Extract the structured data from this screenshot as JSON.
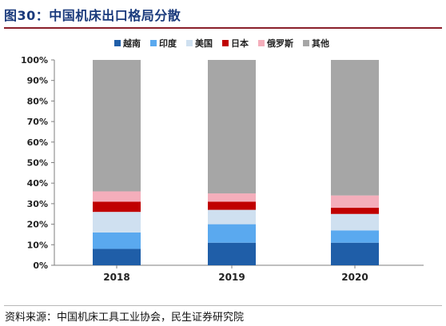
{
  "header": {
    "title": "图30：中国机床出口格局分散"
  },
  "footer": {
    "source": "资料来源：中国机床工具工业协会，民生证券研究院"
  },
  "chart_data": {
    "type": "bar",
    "stacked": true,
    "categories": [
      "2018",
      "2019",
      "2020"
    ],
    "yticks": [
      "0%",
      "10%",
      "20%",
      "30%",
      "40%",
      "50%",
      "60%",
      "70%",
      "80%",
      "90%",
      "100%"
    ],
    "ylim": [
      0,
      100
    ],
    "unit": "%",
    "grid": false,
    "legend_position": "top",
    "series": [
      {
        "name": "越南",
        "color": "#1f5ea8",
        "values": [
          8,
          11,
          11
        ]
      },
      {
        "name": "印度",
        "color": "#5aa9ef",
        "values": [
          8,
          9,
          6
        ]
      },
      {
        "name": "美国",
        "color": "#cfe0f0",
        "values": [
          10,
          7,
          8
        ]
      },
      {
        "name": "日本",
        "color": "#c00000",
        "values": [
          5,
          4,
          3
        ]
      },
      {
        "name": "俄罗斯",
        "color": "#f4aebb",
        "values": [
          5,
          4,
          6
        ]
      },
      {
        "name": "其他",
        "color": "#a6a6a6",
        "values": [
          64,
          65,
          66
        ]
      }
    ]
  }
}
